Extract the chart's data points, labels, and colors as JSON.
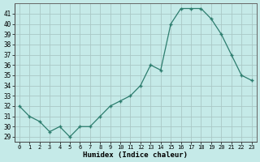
{
  "hours": [
    0,
    1,
    2,
    3,
    4,
    5,
    6,
    7,
    8,
    9,
    10,
    11,
    12,
    13,
    14,
    15,
    16,
    17,
    18,
    19,
    20,
    21,
    22,
    23
  ],
  "values": [
    32,
    31,
    30.5,
    29.5,
    30,
    29,
    30,
    30,
    31,
    32,
    32.5,
    33,
    34,
    36,
    35.5,
    40,
    41.5,
    41.5,
    41.5,
    40.5,
    39,
    37,
    35,
    34.5
  ],
  "line_color": "#2d7d6e",
  "marker": "+",
  "bg_color": "#c5eae8",
  "grid_color": "#aac8c6",
  "xlabel": "Humidex (Indice chaleur)",
  "ylim": [
    28.5,
    42
  ],
  "ytick_min": 29,
  "ytick_max": 41,
  "xlim": [
    -0.5,
    23.5
  ],
  "xticks": [
    0,
    1,
    2,
    3,
    4,
    5,
    6,
    7,
    8,
    9,
    10,
    11,
    12,
    13,
    14,
    15,
    16,
    17,
    18,
    19,
    20,
    21,
    22,
    23
  ],
  "yticks": [
    29,
    30,
    31,
    32,
    33,
    34,
    35,
    36,
    37,
    38,
    39,
    40,
    41
  ]
}
